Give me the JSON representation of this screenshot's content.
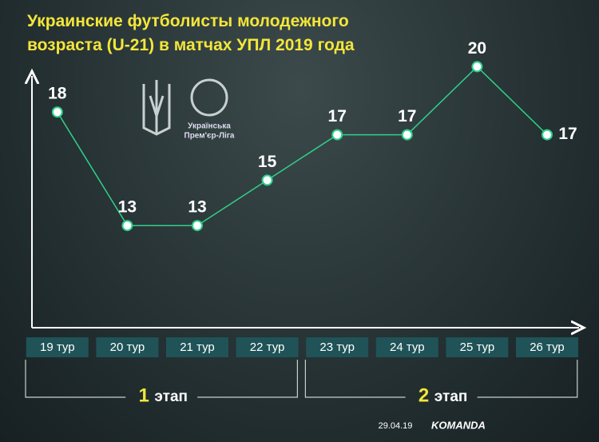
{
  "chart_data": {
    "type": "line",
    "title": "Украинские футболисты молодежного возраста (U-21) в матчах УПЛ 2019 года",
    "categories": [
      "19 тур",
      "20 тур",
      "21 тур",
      "22 тур",
      "23 тур",
      "24 тур",
      "25 тур",
      "26 тур"
    ],
    "values": [
      18,
      13,
      13,
      15,
      17,
      17,
      20,
      17
    ],
    "color": "#2fd08a",
    "ylim": [
      8.5,
      21
    ],
    "stages": [
      {
        "number": "1",
        "label": "этап"
      },
      {
        "number": "2",
        "label": "этап"
      }
    ],
    "logo_text": [
      "Українська",
      "Прем'єр-Ліга"
    ],
    "date": "29.04.19",
    "brand": "KOMANDA"
  }
}
